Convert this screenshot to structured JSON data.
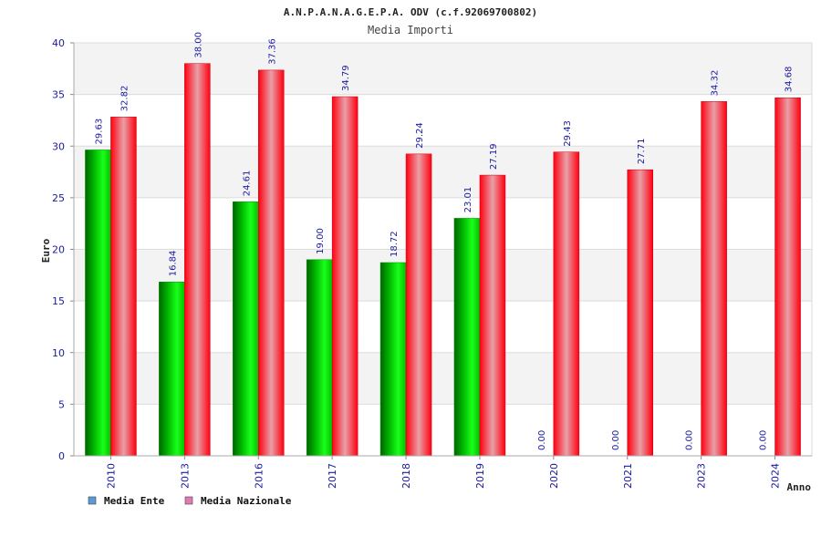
{
  "chart_data": {
    "type": "bar",
    "title": "A.N.P.A.N.A.G.E.P.A. ODV (c.f.92069700802)",
    "subtitle": "Media Importi",
    "xlabel": "Anno",
    "ylabel": "Euro",
    "ylim": [
      0,
      40
    ],
    "yticks": [
      0,
      5,
      10,
      15,
      20,
      25,
      30,
      35,
      40
    ],
    "grid": true,
    "legend_position": "bottom-left",
    "categories": [
      "2010",
      "2013",
      "2016",
      "2017",
      "2018",
      "2019",
      "2020",
      "2021",
      "2023",
      "2024"
    ],
    "series": [
      {
        "name": "Media Ente",
        "values": [
          29.63,
          16.84,
          24.61,
          19.0,
          18.72,
          23.01,
          0.0,
          0.0,
          0.0,
          0.0
        ],
        "labels": [
          "29.63",
          "16.84",
          "24.61",
          "19.00",
          "18.72",
          "23.01",
          "0.00",
          "0.00",
          "0.00",
          "0.00"
        ],
        "color": "#00cc00",
        "legend_color": "#5b9bd5"
      },
      {
        "name": "Media Nazionale",
        "values": [
          32.82,
          38.0,
          37.36,
          34.79,
          29.24,
          27.19,
          29.43,
          27.71,
          34.32,
          34.68
        ],
        "labels": [
          "32.82",
          "38.00",
          "37.36",
          "34.79",
          "29.24",
          "27.19",
          "29.43",
          "27.71",
          "34.32",
          "34.68"
        ],
        "color": "#ff1a2a",
        "legend_color": "#e07ab0"
      }
    ]
  }
}
